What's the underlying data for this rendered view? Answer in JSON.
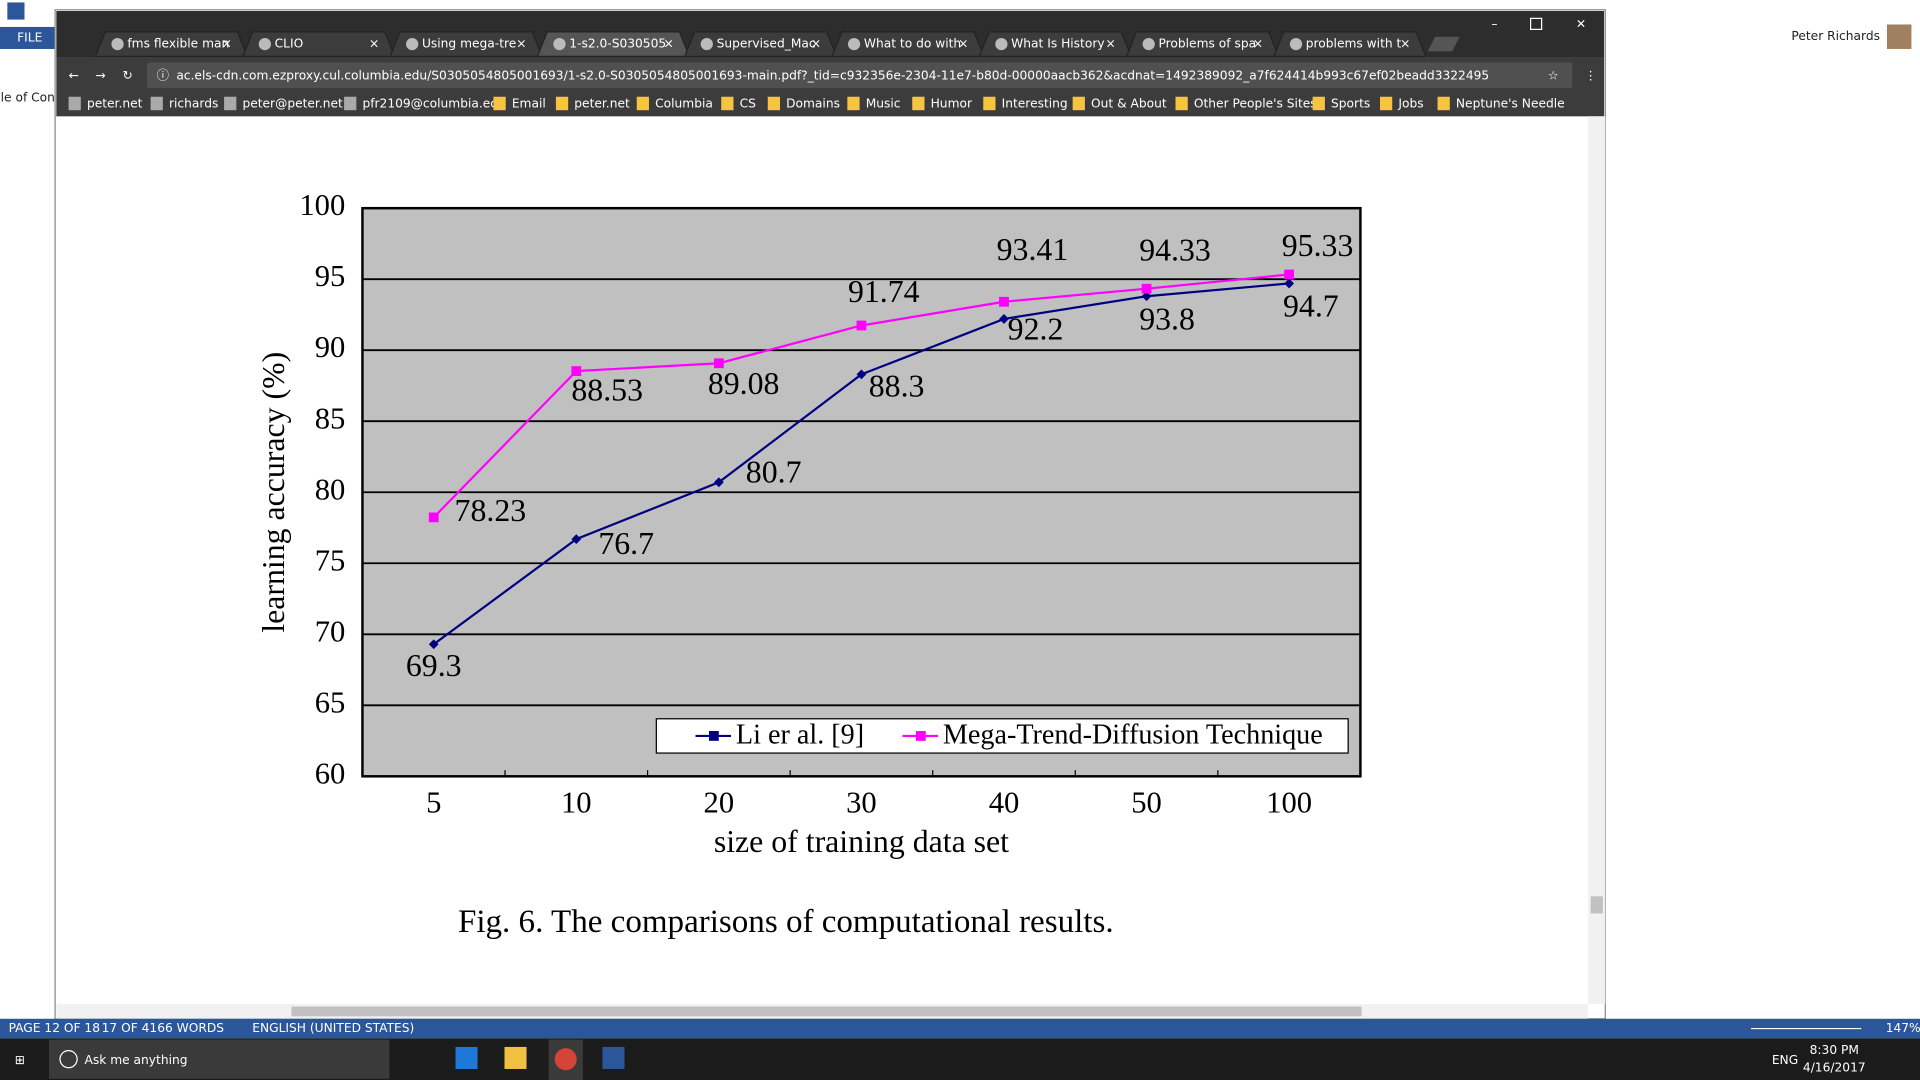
{
  "word": {
    "file_tab": "FILE",
    "user": "Peter Richards",
    "nav_pane": "Table of Contents",
    "status": {
      "page": "PAGE 12 OF 18",
      "words": "17 OF 4166 WORDS",
      "language": "ENGLISH (UNITED STATES)",
      "zoom": "147%"
    }
  },
  "browser": {
    "tabs": [
      "fms flexible man",
      "CLIO",
      "Using mega-tre",
      "1-s2.0-S030505",
      "Supervised_Mac",
      "What to do with",
      "What Is History",
      "Problems of spa",
      "problems with t"
    ],
    "url_host": "ac.els-cdn.com.ezproxy.cul.columbia.edu",
    "url_path": "/S0305054805001693/1-s2.0-S0305054805001693-main.pdf?_tid=c932356e-2304-11e7-b80d-00000aacb362&acdnat=1492389092_a7f624414b993c67ef02beadd3322495",
    "bookmarks": [
      "peter.net",
      "richards",
      "peter@peter.net",
      "pfr2109@columbia.ec",
      "Email",
      "peter.net",
      "Columbia",
      "CS",
      "Domains",
      "Music",
      "Humor",
      "Interesting",
      "Out & About",
      "Other People's Sites",
      "Sports",
      "Jobs",
      "Neptune's Needle"
    ]
  },
  "chart_data": {
    "type": "line",
    "x_label": "size of training data set",
    "y_label": "learning accuracy (%)",
    "categories": [
      "5",
      "10",
      "20",
      "30",
      "40",
      "50",
      "100"
    ],
    "series": [
      {
        "name": "Li er al. [9]",
        "color": "#000080",
        "values": [
          69.3,
          76.7,
          80.7,
          88.3,
          92.2,
          93.8,
          94.7
        ]
      },
      {
        "name": "Mega-Trend-Diffusion Technique",
        "color": "#ff00ff",
        "values": [
          78.23,
          88.53,
          89.08,
          91.74,
          93.41,
          94.33,
          95.33
        ]
      }
    ],
    "ylim": [
      60,
      100
    ],
    "yticks": [
      60,
      65,
      70,
      75,
      80,
      85,
      90,
      95,
      100
    ],
    "grid": true,
    "background": "#c0c0c0",
    "legend": "bottom-right"
  },
  "caption": "Fig. 6. The comparisons of computational results.",
  "taskbar": {
    "search": "Ask me anything",
    "language": "ENG",
    "time": "8:30 PM",
    "date": "4/16/2017"
  }
}
